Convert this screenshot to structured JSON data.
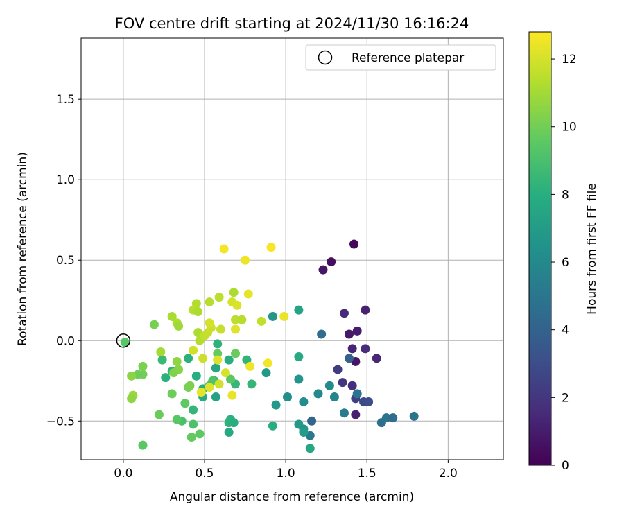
{
  "chart_data": {
    "type": "scatter",
    "title": "FOV centre drift starting at 2024/11/30 16:16:24",
    "xlabel": "Angular distance from reference (arcmin)",
    "ylabel": "Rotation from reference (arcmin)",
    "xlim": [
      -0.26,
      2.34
    ],
    "ylim": [
      -0.74,
      1.88
    ],
    "xticks": [
      {
        "v": 0.0,
        "label": "0.0"
      },
      {
        "v": 0.5,
        "label": "0.5"
      },
      {
        "v": 1.0,
        "label": "1.0"
      },
      {
        "v": 1.5,
        "label": "1.5"
      },
      {
        "v": 2.0,
        "label": "2.0"
      }
    ],
    "yticks": [
      {
        "v": -0.5,
        "label": "−0.5"
      },
      {
        "v": 0.0,
        "label": "0.0"
      },
      {
        "v": 0.5,
        "label": "0.5"
      },
      {
        "v": 1.0,
        "label": "1.0"
      },
      {
        "v": 1.5,
        "label": "1.5"
      }
    ],
    "grid": true,
    "legend": {
      "position": "top-right",
      "label": "Reference platepar"
    },
    "reference_point": {
      "x": 0.0,
      "y": 0.0
    },
    "colorbar": {
      "label": "Hours from first FF file",
      "range": [
        0,
        12.8
      ],
      "ticks": [
        {
          "v": 0,
          "label": "0"
        },
        {
          "v": 2,
          "label": "2"
        },
        {
          "v": 4,
          "label": "4"
        },
        {
          "v": 6,
          "label": "6"
        },
        {
          "v": 8,
          "label": "8"
        },
        {
          "v": 10,
          "label": "10"
        },
        {
          "v": 12,
          "label": "12"
        }
      ],
      "colormap": "viridis"
    },
    "points": [
      {
        "x": 1.42,
        "y": 0.6,
        "t": 0.3
      },
      {
        "x": 1.28,
        "y": 0.49,
        "t": 0.5
      },
      {
        "x": 1.23,
        "y": 0.44,
        "t": 0.8
      },
      {
        "x": 1.49,
        "y": 0.19,
        "t": 1.2
      },
      {
        "x": 1.36,
        "y": 0.17,
        "t": 1.5
      },
      {
        "x": 1.44,
        "y": 0.06,
        "t": 1.0
      },
      {
        "x": 1.39,
        "y": 0.04,
        "t": 0.9
      },
      {
        "x": 1.41,
        "y": -0.05,
        "t": 1.3
      },
      {
        "x": 1.49,
        "y": -0.05,
        "t": 1.6
      },
      {
        "x": 1.56,
        "y": -0.11,
        "t": 1.4
      },
      {
        "x": 1.43,
        "y": -0.13,
        "t": 0.7
      },
      {
        "x": 1.32,
        "y": -0.18,
        "t": 2.2
      },
      {
        "x": 1.35,
        "y": -0.26,
        "t": 1.9
      },
      {
        "x": 1.41,
        "y": -0.28,
        "t": 1.7
      },
      {
        "x": 1.43,
        "y": -0.36,
        "t": 2.4
      },
      {
        "x": 1.48,
        "y": -0.38,
        "t": 2.8
      },
      {
        "x": 1.51,
        "y": -0.38,
        "t": 3.0
      },
      {
        "x": 1.43,
        "y": -0.46,
        "t": 1.1
      },
      {
        "x": 1.22,
        "y": 0.04,
        "t": 4.5
      },
      {
        "x": 1.39,
        "y": -0.11,
        "t": 4.0
      },
      {
        "x": 1.44,
        "y": -0.33,
        "t": 5.0
      },
      {
        "x": 1.36,
        "y": -0.45,
        "t": 5.3
      },
      {
        "x": 1.16,
        "y": -0.5,
        "t": 4.2
      },
      {
        "x": 1.59,
        "y": -0.51,
        "t": 4.6
      },
      {
        "x": 1.62,
        "y": -0.48,
        "t": 4.9
      },
      {
        "x": 1.66,
        "y": -0.48,
        "t": 4.5
      },
      {
        "x": 1.79,
        "y": -0.47,
        "t": 4.9
      },
      {
        "x": 1.15,
        "y": -0.59,
        "t": 5.1
      },
      {
        "x": 1.2,
        "y": -0.33,
        "t": 6.0
      },
      {
        "x": 1.27,
        "y": -0.28,
        "t": 6.1
      },
      {
        "x": 1.3,
        "y": -0.35,
        "t": 5.8
      },
      {
        "x": 1.11,
        "y": -0.38,
        "t": 6.2
      },
      {
        "x": 1.01,
        "y": -0.35,
        "t": 6.3
      },
      {
        "x": 1.08,
        "y": -0.24,
        "t": 6.7
      },
      {
        "x": 0.94,
        "y": -0.4,
        "t": 6.9
      },
      {
        "x": 0.88,
        "y": -0.2,
        "t": 6.8
      },
      {
        "x": 0.92,
        "y": 0.15,
        "t": 6.8
      },
      {
        "x": 1.08,
        "y": 0.19,
        "t": 7.4
      },
      {
        "x": 1.08,
        "y": -0.1,
        "t": 7.8
      },
      {
        "x": 1.08,
        "y": -0.52,
        "t": 6.9
      },
      {
        "x": 1.11,
        "y": -0.55,
        "t": 6.6
      },
      {
        "x": 1.11,
        "y": -0.57,
        "t": 7.0
      },
      {
        "x": 1.15,
        "y": -0.67,
        "t": 7.6
      },
      {
        "x": 0.92,
        "y": -0.53,
        "t": 7.9
      },
      {
        "x": 0.58,
        "y": -0.02,
        "t": 8.2
      },
      {
        "x": 0.57,
        "y": -0.17,
        "t": 7.5
      },
      {
        "x": 0.65,
        "y": -0.12,
        "t": 7.9
      },
      {
        "x": 0.76,
        "y": -0.12,
        "t": 8.3
      },
      {
        "x": 0.69,
        "y": -0.27,
        "t": 8.5
      },
      {
        "x": 0.57,
        "y": -0.35,
        "t": 7.3
      },
      {
        "x": 0.49,
        "y": -0.35,
        "t": 7.7
      },
      {
        "x": 0.49,
        "y": -0.3,
        "t": 7.9
      },
      {
        "x": 0.45,
        "y": -0.22,
        "t": 8.0
      },
      {
        "x": 0.4,
        "y": -0.11,
        "t": 8.1
      },
      {
        "x": 0.56,
        "y": -0.25,
        "t": 8.5
      },
      {
        "x": 0.79,
        "y": -0.27,
        "t": 8.4
      },
      {
        "x": 0.66,
        "y": -0.49,
        "t": 8.1
      },
      {
        "x": 0.65,
        "y": -0.51,
        "t": 8.2
      },
      {
        "x": 0.68,
        "y": -0.51,
        "t": 8.0
      },
      {
        "x": 0.65,
        "y": -0.57,
        "t": 7.8
      },
      {
        "x": 0.43,
        "y": -0.43,
        "t": 8.4
      },
      {
        "x": 0.26,
        "y": -0.23,
        "t": 8.1
      },
      {
        "x": 0.3,
        "y": -0.19,
        "t": 8.3
      },
      {
        "x": 0.24,
        "y": -0.12,
        "t": 8.6
      },
      {
        "x": 0.36,
        "y": -0.5,
        "t": 9.0
      },
      {
        "x": 0.43,
        "y": -0.52,
        "t": 9.1
      },
      {
        "x": 0.33,
        "y": -0.49,
        "t": 9.4
      },
      {
        "x": 0.47,
        "y": -0.58,
        "t": 9.6
      },
      {
        "x": 0.42,
        "y": -0.6,
        "t": 9.7
      },
      {
        "x": 0.12,
        "y": -0.65,
        "t": 9.5
      },
      {
        "x": 0.22,
        "y": -0.46,
        "t": 9.8
      },
      {
        "x": 0.38,
        "y": -0.39,
        "t": 9.6
      },
      {
        "x": 0.3,
        "y": -0.33,
        "t": 9.9
      },
      {
        "x": 0.4,
        "y": -0.29,
        "t": 10.1
      },
      {
        "x": 0.41,
        "y": -0.28,
        "t": 10.2
      },
      {
        "x": 0.34,
        "y": -0.18,
        "t": 10.4
      },
      {
        "x": 0.31,
        "y": -0.2,
        "t": 10.3
      },
      {
        "x": 0.33,
        "y": -0.13,
        "t": 10.6
      },
      {
        "x": 0.55,
        "y": -0.25,
        "t": 9.2
      },
      {
        "x": 0.53,
        "y": -0.28,
        "t": 9.0
      },
      {
        "x": 0.66,
        "y": -0.24,
        "t": 9.5
      },
      {
        "x": 0.58,
        "y": -0.08,
        "t": 9.7
      },
      {
        "x": 0.69,
        "y": -0.08,
        "t": 9.8
      },
      {
        "x": 0.12,
        "y": -0.16,
        "t": 10.2
      },
      {
        "x": 0.12,
        "y": -0.21,
        "t": 10.0
      },
      {
        "x": 0.09,
        "y": -0.21,
        "t": 9.9
      },
      {
        "x": 0.05,
        "y": -0.22,
        "t": 10.5
      },
      {
        "x": 0.06,
        "y": -0.34,
        "t": 10.8
      },
      {
        "x": 0.05,
        "y": -0.36,
        "t": 10.6
      },
      {
        "x": 0.01,
        "y": -0.01,
        "t": 9.4
      },
      {
        "x": 0.19,
        "y": 0.1,
        "t": 10.1
      },
      {
        "x": 0.23,
        "y": -0.07,
        "t": 11.0
      },
      {
        "x": 0.33,
        "y": 0.11,
        "t": 11.2
      },
      {
        "x": 0.34,
        "y": 0.09,
        "t": 10.9
      },
      {
        "x": 0.3,
        "y": 0.15,
        "t": 11.1
      },
      {
        "x": 0.45,
        "y": 0.23,
        "t": 11.3
      },
      {
        "x": 0.43,
        "y": 0.19,
        "t": 11.4
      },
      {
        "x": 0.46,
        "y": 0.18,
        "t": 11.2
      },
      {
        "x": 0.53,
        "y": 0.24,
        "t": 11.4
      },
      {
        "x": 0.59,
        "y": 0.27,
        "t": 11.5
      },
      {
        "x": 0.46,
        "y": 0.05,
        "t": 11.2
      },
      {
        "x": 0.47,
        "y": -0.0,
        "t": 11.3
      },
      {
        "x": 0.5,
        "y": 0.03,
        "t": 11.6
      },
      {
        "x": 0.52,
        "y": 0.05,
        "t": 11.7
      },
      {
        "x": 0.54,
        "y": 0.08,
        "t": 11.8
      },
      {
        "x": 0.53,
        "y": 0.11,
        "t": 12.0
      },
      {
        "x": 0.6,
        "y": 0.07,
        "t": 11.7
      },
      {
        "x": 0.69,
        "y": 0.13,
        "t": 11.5
      },
      {
        "x": 0.73,
        "y": 0.13,
        "t": 11.4
      },
      {
        "x": 0.68,
        "y": 0.3,
        "t": 11.2
      },
      {
        "x": 0.67,
        "y": 0.24,
        "t": 12.0
      },
      {
        "x": 0.7,
        "y": 0.22,
        "t": 12.1
      },
      {
        "x": 0.85,
        "y": 0.12,
        "t": 11.6
      },
      {
        "x": 0.77,
        "y": 0.29,
        "t": 12.3
      },
      {
        "x": 0.99,
        "y": 0.15,
        "t": 12.4
      },
      {
        "x": 0.69,
        "y": 0.07,
        "t": 12.2
      },
      {
        "x": 0.43,
        "y": -0.06,
        "t": 11.9
      },
      {
        "x": 0.49,
        "y": -0.11,
        "t": 11.8
      },
      {
        "x": 0.58,
        "y": -0.12,
        "t": 12.1
      },
      {
        "x": 0.63,
        "y": -0.2,
        "t": 12.0
      },
      {
        "x": 0.59,
        "y": -0.27,
        "t": 11.9
      },
      {
        "x": 0.53,
        "y": -0.29,
        "t": 12.2
      },
      {
        "x": 0.48,
        "y": -0.32,
        "t": 12.3
      },
      {
        "x": 0.67,
        "y": -0.34,
        "t": 12.4
      },
      {
        "x": 0.78,
        "y": -0.16,
        "t": 12.5
      },
      {
        "x": 0.89,
        "y": -0.14,
        "t": 12.6
      },
      {
        "x": 0.62,
        "y": 0.57,
        "t": 12.6
      },
      {
        "x": 0.75,
        "y": 0.5,
        "t": 12.5
      },
      {
        "x": 0.91,
        "y": 0.58,
        "t": 12.7
      }
    ]
  }
}
